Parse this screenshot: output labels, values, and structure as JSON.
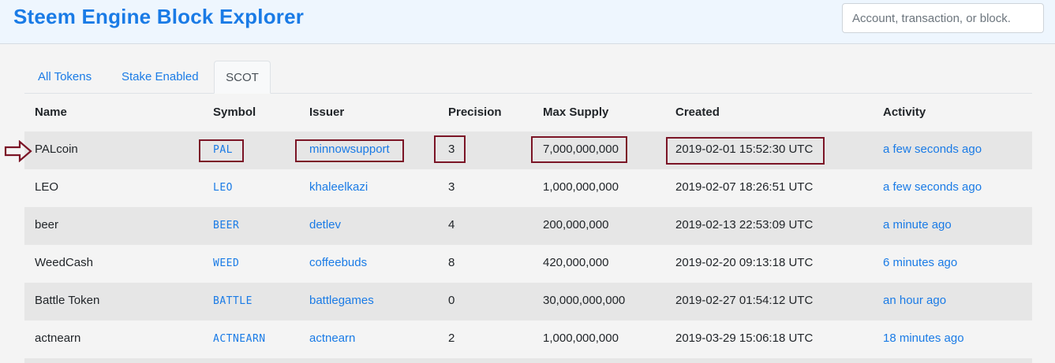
{
  "header": {
    "title": "Steem Engine Block Explorer",
    "search_placeholder": "Account, transaction, or block."
  },
  "tabs": [
    {
      "label": "All Tokens",
      "active": false
    },
    {
      "label": "Stake Enabled",
      "active": false
    },
    {
      "label": "SCOT",
      "active": true
    }
  ],
  "columns": [
    "Name",
    "Symbol",
    "Issuer",
    "Precision",
    "Max Supply",
    "Created",
    "Activity"
  ],
  "rows": [
    {
      "name": "PALcoin",
      "symbol": "PAL",
      "issuer": "minnowsupport",
      "precision": "3",
      "max_supply": "7,000,000,000",
      "created": "2019-02-01 15:52:30 UTC",
      "activity": "a few seconds ago"
    },
    {
      "name": "LEO",
      "symbol": "LEO",
      "issuer": "khaleelkazi",
      "precision": "3",
      "max_supply": "1,000,000,000",
      "created": "2019-02-07 18:26:51 UTC",
      "activity": "a few seconds ago"
    },
    {
      "name": "beer",
      "symbol": "BEER",
      "issuer": "detlev",
      "precision": "4",
      "max_supply": "200,000,000",
      "created": "2019-02-13 22:53:09 UTC",
      "activity": "a minute ago"
    },
    {
      "name": "WeedCash",
      "symbol": "WEED",
      "issuer": "coffeebuds",
      "precision": "8",
      "max_supply": "420,000,000",
      "created": "2019-02-20 09:13:18 UTC",
      "activity": "6 minutes ago"
    },
    {
      "name": "Battle Token",
      "symbol": "BATTLE",
      "issuer": "battlegames",
      "precision": "0",
      "max_supply": "30,000,000,000",
      "created": "2019-02-27 01:54:12 UTC",
      "activity": "an hour ago"
    },
    {
      "name": "actnearn",
      "symbol": "ACTNEARN",
      "issuer": "actnearn",
      "precision": "2",
      "max_supply": "1,000,000,000",
      "created": "2019-03-29 15:06:18 UTC",
      "activity": "18 minutes ago"
    }
  ],
  "colors": {
    "accent": "#1a7be6",
    "highlight": "#7b1526",
    "stripe": "#e6e6e6"
  }
}
